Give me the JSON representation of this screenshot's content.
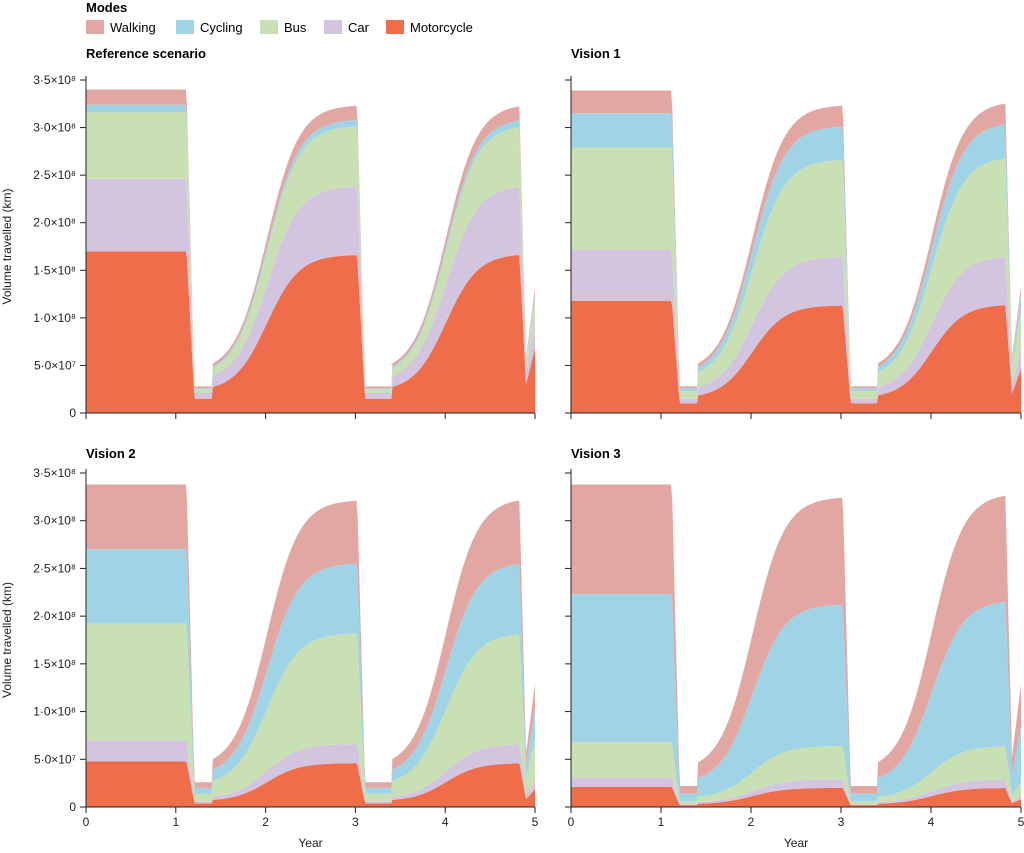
{
  "legend": {
    "title": "Modes",
    "entries": [
      {
        "name": "Walking",
        "color": "#e2a7a2"
      },
      {
        "name": "Cycling",
        "color": "#9ed4e6"
      },
      {
        "name": "Bus",
        "color": "#c9e0b4"
      },
      {
        "name": "Car",
        "color": "#d3c5e0"
      },
      {
        "name": "Motorcycle",
        "color": "#f06d4c"
      }
    ]
  },
  "axes": {
    "xlabel": "Year",
    "ylabel": "Volume travelled (km)",
    "xticks": [
      "0",
      "1",
      "2",
      "3",
      "4",
      "5"
    ],
    "yticks": [
      "0",
      "5·0×10⁷",
      "1·0×10⁸",
      "1·5×10⁸",
      "2·0×10⁸",
      "2·5×10⁸",
      "3·0×10⁸",
      "3·5×10⁸"
    ]
  },
  "chart_data": [
    {
      "type": "area",
      "title": "Reference scenario",
      "xlabel": "",
      "ylabel": "Volume travelled (km)",
      "xlim": [
        0,
        5
      ],
      "ylim": [
        0,
        350000000
      ],
      "series_order_bottom_to_top": [
        "Motorcycle",
        "Car",
        "Bus",
        "Cycling",
        "Walking"
      ],
      "series": [
        {
          "name": "Motorcycle",
          "peak_values": [
            170000000,
            166000000,
            167000000
          ],
          "trough_value": 15000000
        },
        {
          "name": "Car",
          "peak_values": [
            76000000,
            72000000,
            72000000
          ],
          "trough_value": 6000000
        },
        {
          "name": "Bus",
          "peak_values": [
            70000000,
            63000000,
            63000000
          ],
          "trough_value": 4000000
        },
        {
          "name": "Cycling",
          "peak_values": [
            8000000,
            7000000,
            7000000
          ],
          "trough_value": 1000000
        },
        {
          "name": "Walking",
          "peak_values": [
            16000000,
            15000000,
            15000000
          ],
          "trough_value": 2000000
        }
      ]
    },
    {
      "type": "area",
      "title": "Vision 1",
      "xlabel": "",
      "ylabel": "",
      "xlim": [
        0,
        5
      ],
      "ylim": [
        0,
        350000000
      ],
      "series_order_bottom_to_top": [
        "Motorcycle",
        "Car",
        "Bus",
        "Cycling",
        "Walking"
      ],
      "series": [
        {
          "name": "Motorcycle",
          "peak_values": [
            118000000,
            113000000,
            114000000
          ],
          "trough_value": 10000000
        },
        {
          "name": "Car",
          "peak_values": [
            54000000,
            51000000,
            51000000
          ],
          "trough_value": 5000000
        },
        {
          "name": "Bus",
          "peak_values": [
            107000000,
            102000000,
            104000000
          ],
          "trough_value": 8000000
        },
        {
          "name": "Cycling",
          "peak_values": [
            36000000,
            35000000,
            36000000
          ],
          "trough_value": 3000000
        },
        {
          "name": "Walking",
          "peak_values": [
            24000000,
            22000000,
            22000000
          ],
          "trough_value": 2000000
        }
      ]
    },
    {
      "type": "area",
      "title": "Vision 2",
      "xlabel": "Year",
      "ylabel": "Volume travelled (km)",
      "xlim": [
        0,
        5
      ],
      "ylim": [
        0,
        350000000
      ],
      "series_order_bottom_to_top": [
        "Motorcycle",
        "Car",
        "Bus",
        "Cycling",
        "Walking"
      ],
      "series": [
        {
          "name": "Motorcycle",
          "peak_values": [
            48000000,
            46000000,
            46000000
          ],
          "trough_value": 4000000
        },
        {
          "name": "Car",
          "peak_values": [
            22000000,
            20000000,
            20000000
          ],
          "trough_value": 2000000
        },
        {
          "name": "Bus",
          "peak_values": [
            122000000,
            116000000,
            116000000
          ],
          "trough_value": 8000000
        },
        {
          "name": "Cycling",
          "peak_values": [
            78000000,
            73000000,
            74000000
          ],
          "trough_value": 6000000
        },
        {
          "name": "Walking",
          "peak_values": [
            68000000,
            66000000,
            67000000
          ],
          "trough_value": 6000000
        }
      ]
    },
    {
      "type": "area",
      "title": "Vision 3",
      "xlabel": "Year",
      "ylabel": "",
      "xlim": [
        0,
        5
      ],
      "ylim": [
        0,
        350000000
      ],
      "series_order_bottom_to_top": [
        "Motorcycle",
        "Car",
        "Bus",
        "Cycling",
        "Walking"
      ],
      "series": [
        {
          "name": "Motorcycle",
          "peak_values": [
            21000000,
            20000000,
            20000000
          ],
          "trough_value": 2000000
        },
        {
          "name": "Car",
          "peak_values": [
            10000000,
            9000000,
            9000000
          ],
          "trough_value": 1000000
        },
        {
          "name": "Bus",
          "peak_values": [
            37000000,
            35000000,
            35000000
          ],
          "trough_value": 3000000
        },
        {
          "name": "Cycling",
          "peak_values": [
            155000000,
            148000000,
            152000000
          ],
          "trough_value": 8000000
        },
        {
          "name": "Walking",
          "peak_values": [
            115000000,
            112000000,
            112000000
          ],
          "trough_value": 8000000
        }
      ]
    }
  ]
}
